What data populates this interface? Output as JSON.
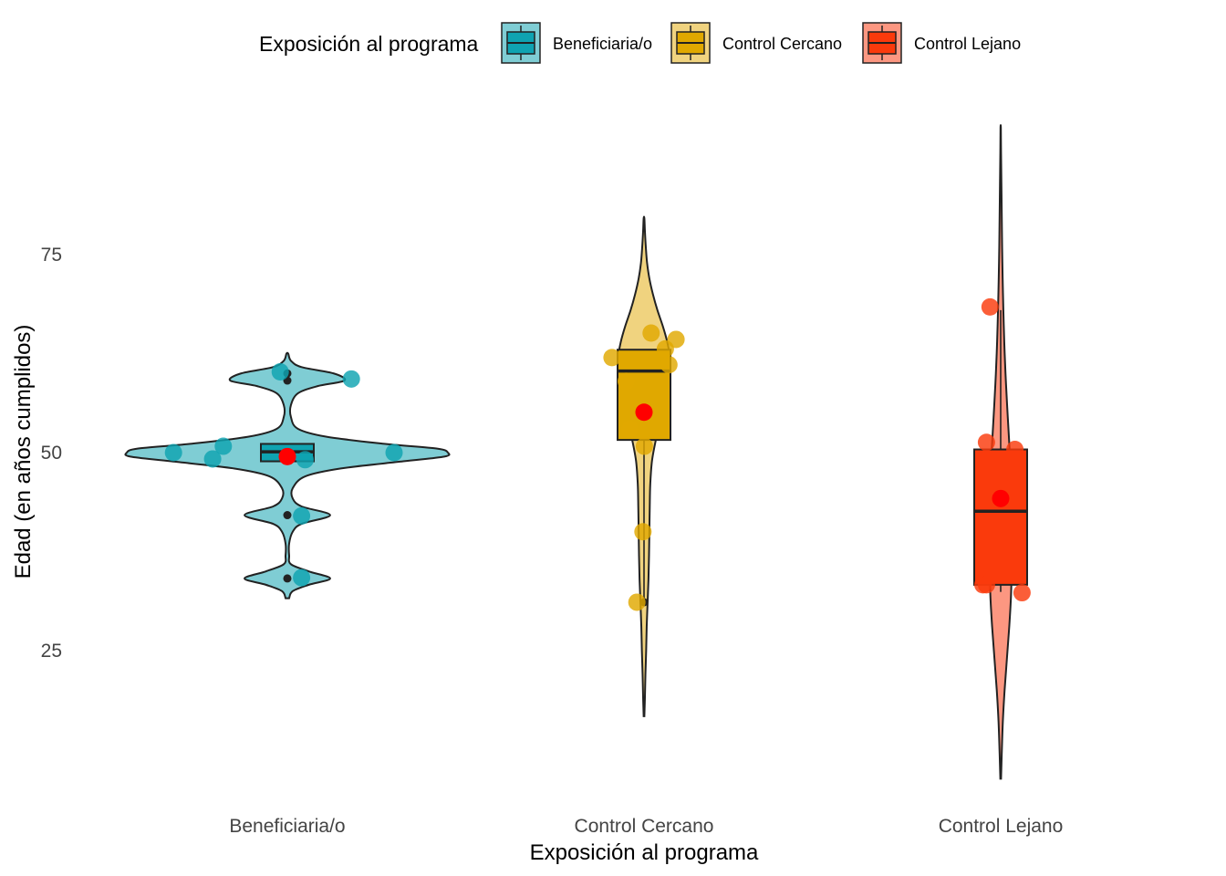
{
  "chart_data": {
    "type": "violin",
    "xlabel": "Exposición al programa",
    "ylabel": "Edad (en años cumplidos)",
    "ylim": [
      7,
      95
    ],
    "yticks": [
      25,
      50,
      75
    ],
    "grid": false,
    "legend": {
      "title": "Exposición al programa",
      "placement": "top",
      "entries": [
        "Beneficiaria/o",
        "Control Cercano",
        "Control Lejano"
      ]
    },
    "categories": [
      "Beneficiaria/o",
      "Control Cercano",
      "Control Lejano"
    ],
    "colors": {
      "Beneficiaria/o": {
        "fill": "#0FA3B1",
        "violin": "#7FCDD4"
      },
      "Control Cercano": {
        "fill": "#E0A800",
        "violin": "#F0D37F"
      },
      "Control Lejano": {
        "fill": "#FA3A0C",
        "violin": "#FC9781"
      },
      "mean": "#FF0000",
      "outline": "#222222"
    },
    "series": [
      {
        "name": "Beneficiaria/o",
        "ymin": 31.6,
        "ymax": 62.5,
        "box": {
          "q1": 48.9,
          "median": 50.1,
          "q3": 51.1,
          "whisker_low": 48.9,
          "whisker_high": 51.1
        },
        "mean": 49.5,
        "outliers": [
          60,
          59.1,
          42.1,
          34.1
        ],
        "points": [
          [
            -0.32,
            50
          ],
          [
            -0.21,
            49.2
          ],
          [
            -0.18,
            50.8
          ],
          [
            -0.02,
            60.2
          ],
          [
            0.04,
            34.2
          ],
          [
            0.04,
            42
          ],
          [
            0.05,
            49.1
          ],
          [
            0.18,
            59.3
          ],
          [
            0.3,
            50
          ]
        ],
        "density": [
          [
            31.6,
            0.01
          ],
          [
            32.5,
            0.03
          ],
          [
            33.3,
            0.12
          ],
          [
            34.1,
            0.24
          ],
          [
            35.0,
            0.12
          ],
          [
            35.9,
            0.02
          ],
          [
            37.0,
            0.01
          ],
          [
            38.5,
            0.01
          ],
          [
            40.0,
            0.03
          ],
          [
            41.0,
            0.08
          ],
          [
            42.1,
            0.24
          ],
          [
            43.2,
            0.08
          ],
          [
            44.2,
            0.03
          ],
          [
            45.5,
            0.03
          ],
          [
            47.0,
            0.1
          ],
          [
            48.0,
            0.3
          ],
          [
            48.9,
            0.65
          ],
          [
            49.5,
            0.88
          ],
          [
            50.0,
            0.9
          ],
          [
            50.5,
            0.84
          ],
          [
            51.1,
            0.55
          ],
          [
            52.0,
            0.22
          ],
          [
            53.0,
            0.06
          ],
          [
            54.5,
            0.02
          ],
          [
            56.0,
            0.02
          ],
          [
            57.5,
            0.06
          ],
          [
            58.4,
            0.17
          ],
          [
            59.1,
            0.32
          ],
          [
            60.0,
            0.26
          ],
          [
            60.8,
            0.08
          ],
          [
            61.6,
            0.02
          ],
          [
            62.5,
            0.005
          ]
        ]
      },
      {
        "name": "Control Cercano",
        "ymin": 16.7,
        "ymax": 79.6,
        "box": {
          "q1": 51.6,
          "median": 60.3,
          "q3": 63.0,
          "whisker_low": 31.1,
          "whisker_high": 63.0
        },
        "mean": 55.1,
        "outliers": [
          31.1
        ],
        "points": [
          [
            -0.09,
            62.0
          ],
          [
            -0.05,
            59.0
          ],
          [
            -0.04,
            53.0
          ],
          [
            -0.02,
            31.1
          ],
          [
            -0.003,
            40.0
          ],
          [
            0.001,
            50.8
          ],
          [
            0.02,
            65.1
          ],
          [
            0.06,
            63.1
          ],
          [
            0.07,
            61.1
          ],
          [
            0.09,
            64.3
          ]
        ],
        "density": [
          [
            16.7,
            0.002
          ],
          [
            19.0,
            0.005
          ],
          [
            22.0,
            0.008
          ],
          [
            25.0,
            0.012
          ],
          [
            28.0,
            0.015
          ],
          [
            31.0,
            0.02
          ],
          [
            34.0,
            0.025
          ],
          [
            37.0,
            0.028
          ],
          [
            40.0,
            0.03
          ],
          [
            43.0,
            0.032
          ],
          [
            46.0,
            0.035
          ],
          [
            49.0,
            0.045
          ],
          [
            52.0,
            0.07
          ],
          [
            55.0,
            0.1
          ],
          [
            58.0,
            0.125
          ],
          [
            60.5,
            0.14
          ],
          [
            62.0,
            0.145
          ],
          [
            64.0,
            0.13
          ],
          [
            66.0,
            0.105
          ],
          [
            68.0,
            0.075
          ],
          [
            70.0,
            0.05
          ],
          [
            72.0,
            0.03
          ],
          [
            74.0,
            0.017
          ],
          [
            76.0,
            0.01
          ],
          [
            78.0,
            0.005
          ],
          [
            79.6,
            0.002
          ]
        ]
      },
      {
        "name": "Control Lejano",
        "ymin": 8.8,
        "ymax": 91.0,
        "box": {
          "q1": 33.3,
          "median": 42.6,
          "q3": 50.4,
          "whisker_low": 32.4,
          "whisker_high": 68.0
        },
        "mean": 44.2,
        "outliers": [],
        "points": [
          [
            -0.03,
            68.4
          ],
          [
            -0.04,
            51.3
          ],
          [
            0.04,
            50.4
          ],
          [
            0.06,
            32.3
          ],
          [
            -0.05,
            33.3
          ],
          [
            -0.04,
            33.3
          ],
          [
            0.0,
            44.2
          ]
        ],
        "density": [
          [
            8.8,
            0.002
          ],
          [
            12.0,
            0.006
          ],
          [
            16.0,
            0.012
          ],
          [
            20.0,
            0.022
          ],
          [
            24.0,
            0.035
          ],
          [
            28.0,
            0.048
          ],
          [
            32.0,
            0.058
          ],
          [
            36.0,
            0.062
          ],
          [
            40.0,
            0.064
          ],
          [
            44.0,
            0.062
          ],
          [
            48.0,
            0.056
          ],
          [
            52.0,
            0.046
          ],
          [
            56.0,
            0.036
          ],
          [
            60.0,
            0.027
          ],
          [
            64.0,
            0.02
          ],
          [
            68.0,
            0.015
          ],
          [
            72.0,
            0.011
          ],
          [
            76.0,
            0.008
          ],
          [
            80.0,
            0.006
          ],
          [
            84.0,
            0.004
          ],
          [
            88.0,
            0.002
          ],
          [
            91.0,
            0.001
          ]
        ]
      }
    ]
  }
}
